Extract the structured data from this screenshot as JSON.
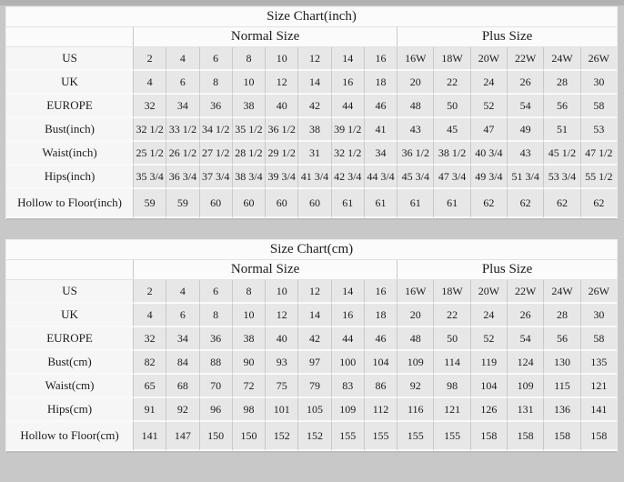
{
  "page": {
    "background_color": "#c8c8c8",
    "top_strip_color": "#b2b2b2",
    "cell_color": "#e7e7e7",
    "label_cell_color": "#f6f6f6",
    "grid_line_color": "#c9c9c9"
  },
  "tables": [
    {
      "title": "Size Chart(inch)",
      "group_headers": [
        {
          "label": "Normal Size",
          "span": 8
        },
        {
          "label": "Plus Size",
          "span": 6
        }
      ],
      "rows": [
        {
          "label": "US",
          "values": [
            "2",
            "4",
            "6",
            "8",
            "10",
            "12",
            "14",
            "16",
            "16W",
            "18W",
            "20W",
            "22W",
            "24W",
            "26W"
          ]
        },
        {
          "label": "UK",
          "values": [
            "4",
            "6",
            "8",
            "10",
            "12",
            "14",
            "16",
            "18",
            "20",
            "22",
            "24",
            "26",
            "28",
            "30"
          ]
        },
        {
          "label": "EUROPE",
          "values": [
            "32",
            "34",
            "36",
            "38",
            "40",
            "42",
            "44",
            "46",
            "48",
            "50",
            "52",
            "54",
            "56",
            "58"
          ]
        },
        {
          "label": "Bust(inch)",
          "values": [
            "32 1/2",
            "33 1/2",
            "34 1/2",
            "35 1/2",
            "36 1/2",
            "38",
            "39 1/2",
            "41",
            "43",
            "45",
            "47",
            "49",
            "51",
            "53"
          ]
        },
        {
          "label": "Waist(inch)",
          "values": [
            "25 1/2",
            "26 1/2",
            "27 1/2",
            "28 1/2",
            "29 1/2",
            "31",
            "32 1/2",
            "34",
            "36 1/2",
            "38 1/2",
            "40 3/4",
            "43",
            "45 1/2",
            "47 1/2"
          ]
        },
        {
          "label": "Hips(inch)",
          "values": [
            "35 3/4",
            "36 3/4",
            "37 3/4",
            "38 3/4",
            "39 3/4",
            "41 3/4",
            "42 3/4",
            "44 3/4",
            "45 3/4",
            "47 3/4",
            "49 3/4",
            "51 3/4",
            "53 3/4",
            "55 1/2"
          ]
        },
        {
          "label": "Hollow to Floor(inch)",
          "values": [
            "59",
            "59",
            "60",
            "60",
            "60",
            "60",
            "61",
            "61",
            "61",
            "61",
            "62",
            "62",
            "62",
            "62"
          ]
        }
      ]
    },
    {
      "title": "Size Chart(cm)",
      "group_headers": [
        {
          "label": "Normal Size",
          "span": 8
        },
        {
          "label": "Plus Size",
          "span": 6
        }
      ],
      "rows": [
        {
          "label": "US",
          "values": [
            "2",
            "4",
            "6",
            "8",
            "10",
            "12",
            "14",
            "16",
            "16W",
            "18W",
            "20W",
            "22W",
            "24W",
            "26W"
          ]
        },
        {
          "label": "UK",
          "values": [
            "4",
            "6",
            "8",
            "10",
            "12",
            "14",
            "16",
            "18",
            "20",
            "22",
            "24",
            "26",
            "28",
            "30"
          ]
        },
        {
          "label": "EUROPE",
          "values": [
            "32",
            "34",
            "36",
            "38",
            "40",
            "42",
            "44",
            "46",
            "48",
            "50",
            "52",
            "54",
            "56",
            "58"
          ]
        },
        {
          "label": "Bust(cm)",
          "values": [
            "82",
            "84",
            "88",
            "90",
            "93",
            "97",
            "100",
            "104",
            "109",
            "114",
            "119",
            "124",
            "130",
            "135"
          ]
        },
        {
          "label": "Waist(cm)",
          "values": [
            "65",
            "68",
            "70",
            "72",
            "75",
            "79",
            "83",
            "86",
            "92",
            "98",
            "104",
            "109",
            "115",
            "121"
          ]
        },
        {
          "label": "Hips(cm)",
          "values": [
            "91",
            "92",
            "96",
            "98",
            "101",
            "105",
            "109",
            "112",
            "116",
            "121",
            "126",
            "131",
            "136",
            "141"
          ]
        },
        {
          "label": "Hollow to Floor(cm)",
          "values": [
            "141",
            "147",
            "150",
            "150",
            "152",
            "152",
            "155",
            "155",
            "155",
            "155",
            "158",
            "158",
            "158",
            "158"
          ]
        }
      ]
    }
  ],
  "chart_data": [
    {
      "type": "table",
      "title": "Size Chart(inch)",
      "column_groups": [
        "Normal Size",
        "Plus Size"
      ],
      "columns": [
        "2",
        "4",
        "6",
        "8",
        "10",
        "12",
        "14",
        "16",
        "16W",
        "18W",
        "20W",
        "22W",
        "24W",
        "26W"
      ],
      "row_labels": [
        "US",
        "UK",
        "EUROPE",
        "Bust(inch)",
        "Waist(inch)",
        "Hips(inch)",
        "Hollow to Floor(inch)"
      ]
    },
    {
      "type": "table",
      "title": "Size Chart(cm)",
      "column_groups": [
        "Normal Size",
        "Plus Size"
      ],
      "columns": [
        "2",
        "4",
        "6",
        "8",
        "10",
        "12",
        "14",
        "16",
        "16W",
        "18W",
        "20W",
        "22W",
        "24W",
        "26W"
      ],
      "row_labels": [
        "US",
        "UK",
        "EUROPE",
        "Bust(cm)",
        "Waist(cm)",
        "Hips(cm)",
        "Hollow to Floor(cm)"
      ]
    }
  ]
}
